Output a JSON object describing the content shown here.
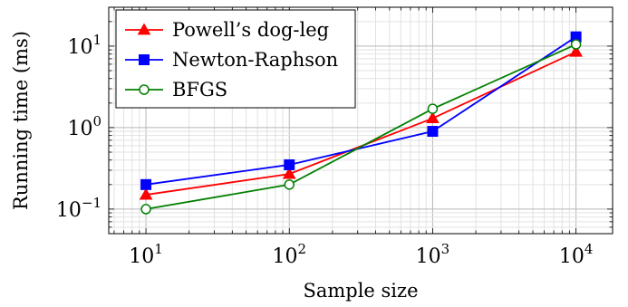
{
  "chart_data": {
    "type": "line",
    "title": "",
    "xlabel": "Sample size",
    "ylabel": "Running time (ms)",
    "x_scale": "log",
    "y_scale": "log",
    "xlim": [
      5.5,
      18000
    ],
    "ylim": [
      0.05,
      30
    ],
    "grid": true,
    "legend_position": "top-left",
    "x_ticks": [
      {
        "base": "10",
        "exp": "1",
        "value": 10
      },
      {
        "base": "10",
        "exp": "2",
        "value": 100
      },
      {
        "base": "10",
        "exp": "3",
        "value": 1000
      },
      {
        "base": "10",
        "exp": "4",
        "value": 10000
      }
    ],
    "y_ticks": [
      {
        "base": "10",
        "exp": "−1",
        "value": 0.1
      },
      {
        "base": "10",
        "exp": "0",
        "value": 1
      },
      {
        "base": "10",
        "exp": "1",
        "value": 10
      }
    ],
    "x": [
      10,
      100,
      1000,
      10000
    ],
    "series": [
      {
        "name": "Powell’s dog-leg",
        "color": "#ff0000",
        "marker": "triangle",
        "values": [
          0.15,
          0.27,
          1.3,
          8.5
        ]
      },
      {
        "name": "Newton-Raphson",
        "color": "#0000ff",
        "marker": "square",
        "values": [
          0.2,
          0.35,
          0.9,
          13
        ]
      },
      {
        "name": "BFGS",
        "color": "#008000",
        "marker": "circle-open",
        "values": [
          0.1,
          0.2,
          1.7,
          10.5
        ]
      }
    ]
  }
}
